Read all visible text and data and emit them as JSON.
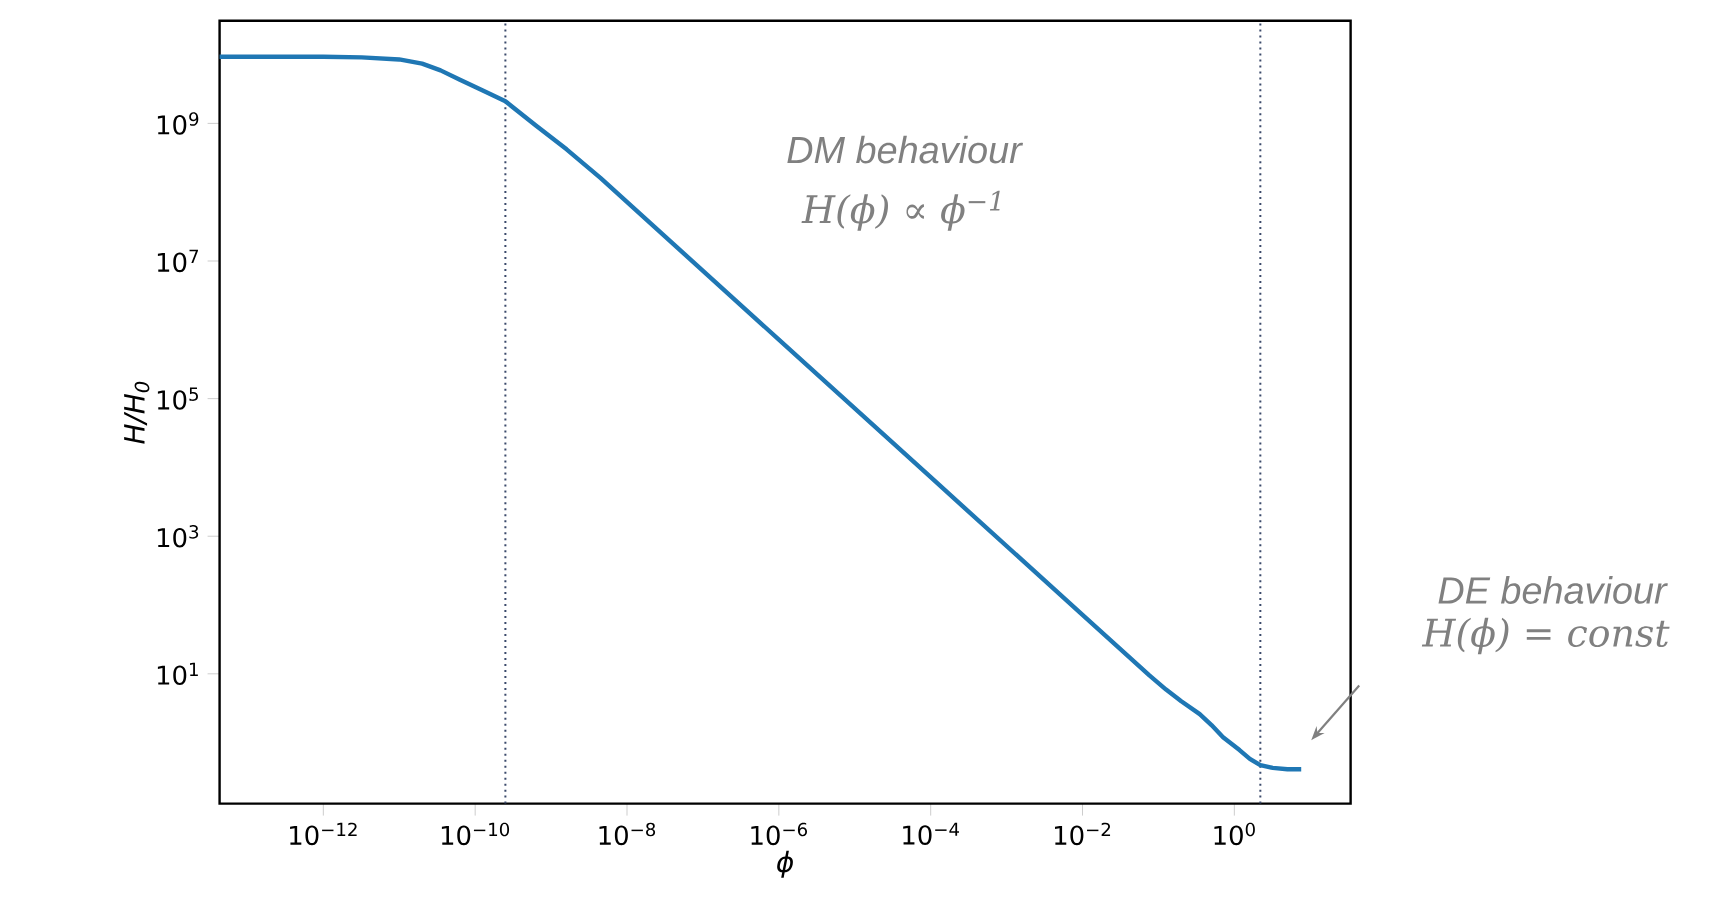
{
  "chart_data": {
    "type": "line",
    "xlabel": "ϕ",
    "ylabel": "H/H$_{0}$",
    "log": "xy",
    "x": [
      4.3e-14,
      1e-12,
      3.2e-12,
      1e-11,
      2e-11,
      3.5e-11,
      6.3e-11,
      1.26e-10,
      2.5e-10,
      6.3e-10,
      1.6e-09,
      4.5e-09,
      1e-06,
      0.0001,
      0.01,
      0.076,
      0.126,
      0.2,
      0.35,
      0.5,
      0.71,
      1.17,
      1.6,
      2.2,
      3.2,
      5,
      7.6
    ],
    "series": [
      {
        "color": "#1f77b4",
        "values": [
          9300000000.0,
          9300000000.0,
          9100000000.0,
          8500000000.0,
          7400000000.0,
          5900000000.0,
          4300000000.0,
          3000000000.0,
          2100000000.0,
          930000000.0,
          420000000.0,
          160000000.0,
          720000.0,
          7200.0,
          72,
          9.5,
          5.9,
          4.0,
          2.6,
          1.8,
          1.2,
          0.78,
          0.58,
          0.47,
          0.43,
          0.41,
          0.41
        ]
      }
    ],
    "xlim": [
      4.3e-14,
      34
    ],
    "ylim": [
      0.13,
      31000000000.0
    ],
    "xticks": [
      {
        "value": 1e-12,
        "label": "10$^{−12}$"
      },
      {
        "value": 1e-10,
        "label": "10$^{−10}$"
      },
      {
        "value": 1e-08,
        "label": "10$^{−8}$"
      },
      {
        "value": 1e-06,
        "label": "10$^{−6}$"
      },
      {
        "value": 0.0001,
        "label": "10$^{−4}$"
      },
      {
        "value": 0.01,
        "label": "10$^{−2}$"
      },
      {
        "value": 1,
        "label": "10$^{0}$"
      }
    ],
    "yticks": [
      {
        "value": 10,
        "label": "10$^{1}$"
      },
      {
        "value": 1000.0,
        "label": "10$^{3}$"
      },
      {
        "value": 100000.0,
        "label": "10$^{5}$"
      },
      {
        "value": 10000000.0,
        "label": "10$^{7}$"
      },
      {
        "value": 1000000000.0,
        "label": "10$^{9}$"
      }
    ],
    "ref_lines": [
      {
        "axis": "x",
        "value": 2.5e-10,
        "color": "#3b4a6b",
        "line_style": "dotted"
      },
      {
        "axis": "x",
        "value": 2.2,
        "color": "#3b4a6b",
        "line_style": "dotted"
      }
    ],
    "annotations": [
      "DM behaviour",
      "H(ϕ) ∝ ϕ$^{−1}$",
      "DE behaviour",
      "H(ϕ) = const"
    ],
    "marker": "none",
    "line_style": "solid"
  }
}
